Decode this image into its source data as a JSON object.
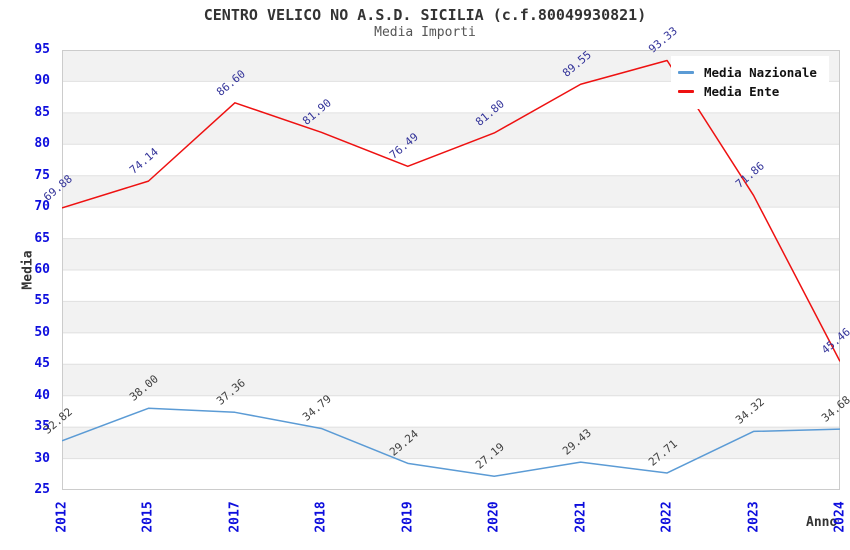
{
  "title": "CENTRO VELICO NO A.S.D. SICILIA (c.f.80049930821)",
  "subtitle": "Media Importi",
  "colors": {
    "axis_tick_color": "#0e0edd",
    "band_fill": "#f2f2f2",
    "grid_line": "#e0e0e0",
    "plot_border": "#cccccc",
    "title_color": "#333333"
  },
  "chart_data": {
    "type": "line",
    "title": "CENTRO VELICO NO A.S.D. SICILIA (c.f.80049930821)",
    "subtitle": "Media Importi",
    "categories": [
      "2012",
      "2015",
      "2017",
      "2018",
      "2019",
      "2020",
      "2021",
      "2022",
      "2023",
      "2024"
    ],
    "xlabel": "Anno",
    "ylabel": "Media",
    "ylim": [
      25,
      95
    ],
    "ytick_step": 5,
    "grid": "horizontal-bands-alternating",
    "legend_position": "top-right",
    "series": [
      {
        "name": "Media Nazionale",
        "color": "#5b9bd5",
        "label_color": "#404040",
        "values": [
          32.82,
          38.0,
          37.36,
          34.79,
          29.24,
          27.19,
          29.43,
          27.71,
          34.32,
          34.68
        ]
      },
      {
        "name": "Media Ente",
        "color": "#ee1111",
        "label_color": "#333399",
        "values": [
          69.88,
          74.14,
          86.6,
          81.9,
          76.49,
          81.8,
          89.55,
          93.33,
          71.86,
          45.46
        ]
      }
    ]
  }
}
